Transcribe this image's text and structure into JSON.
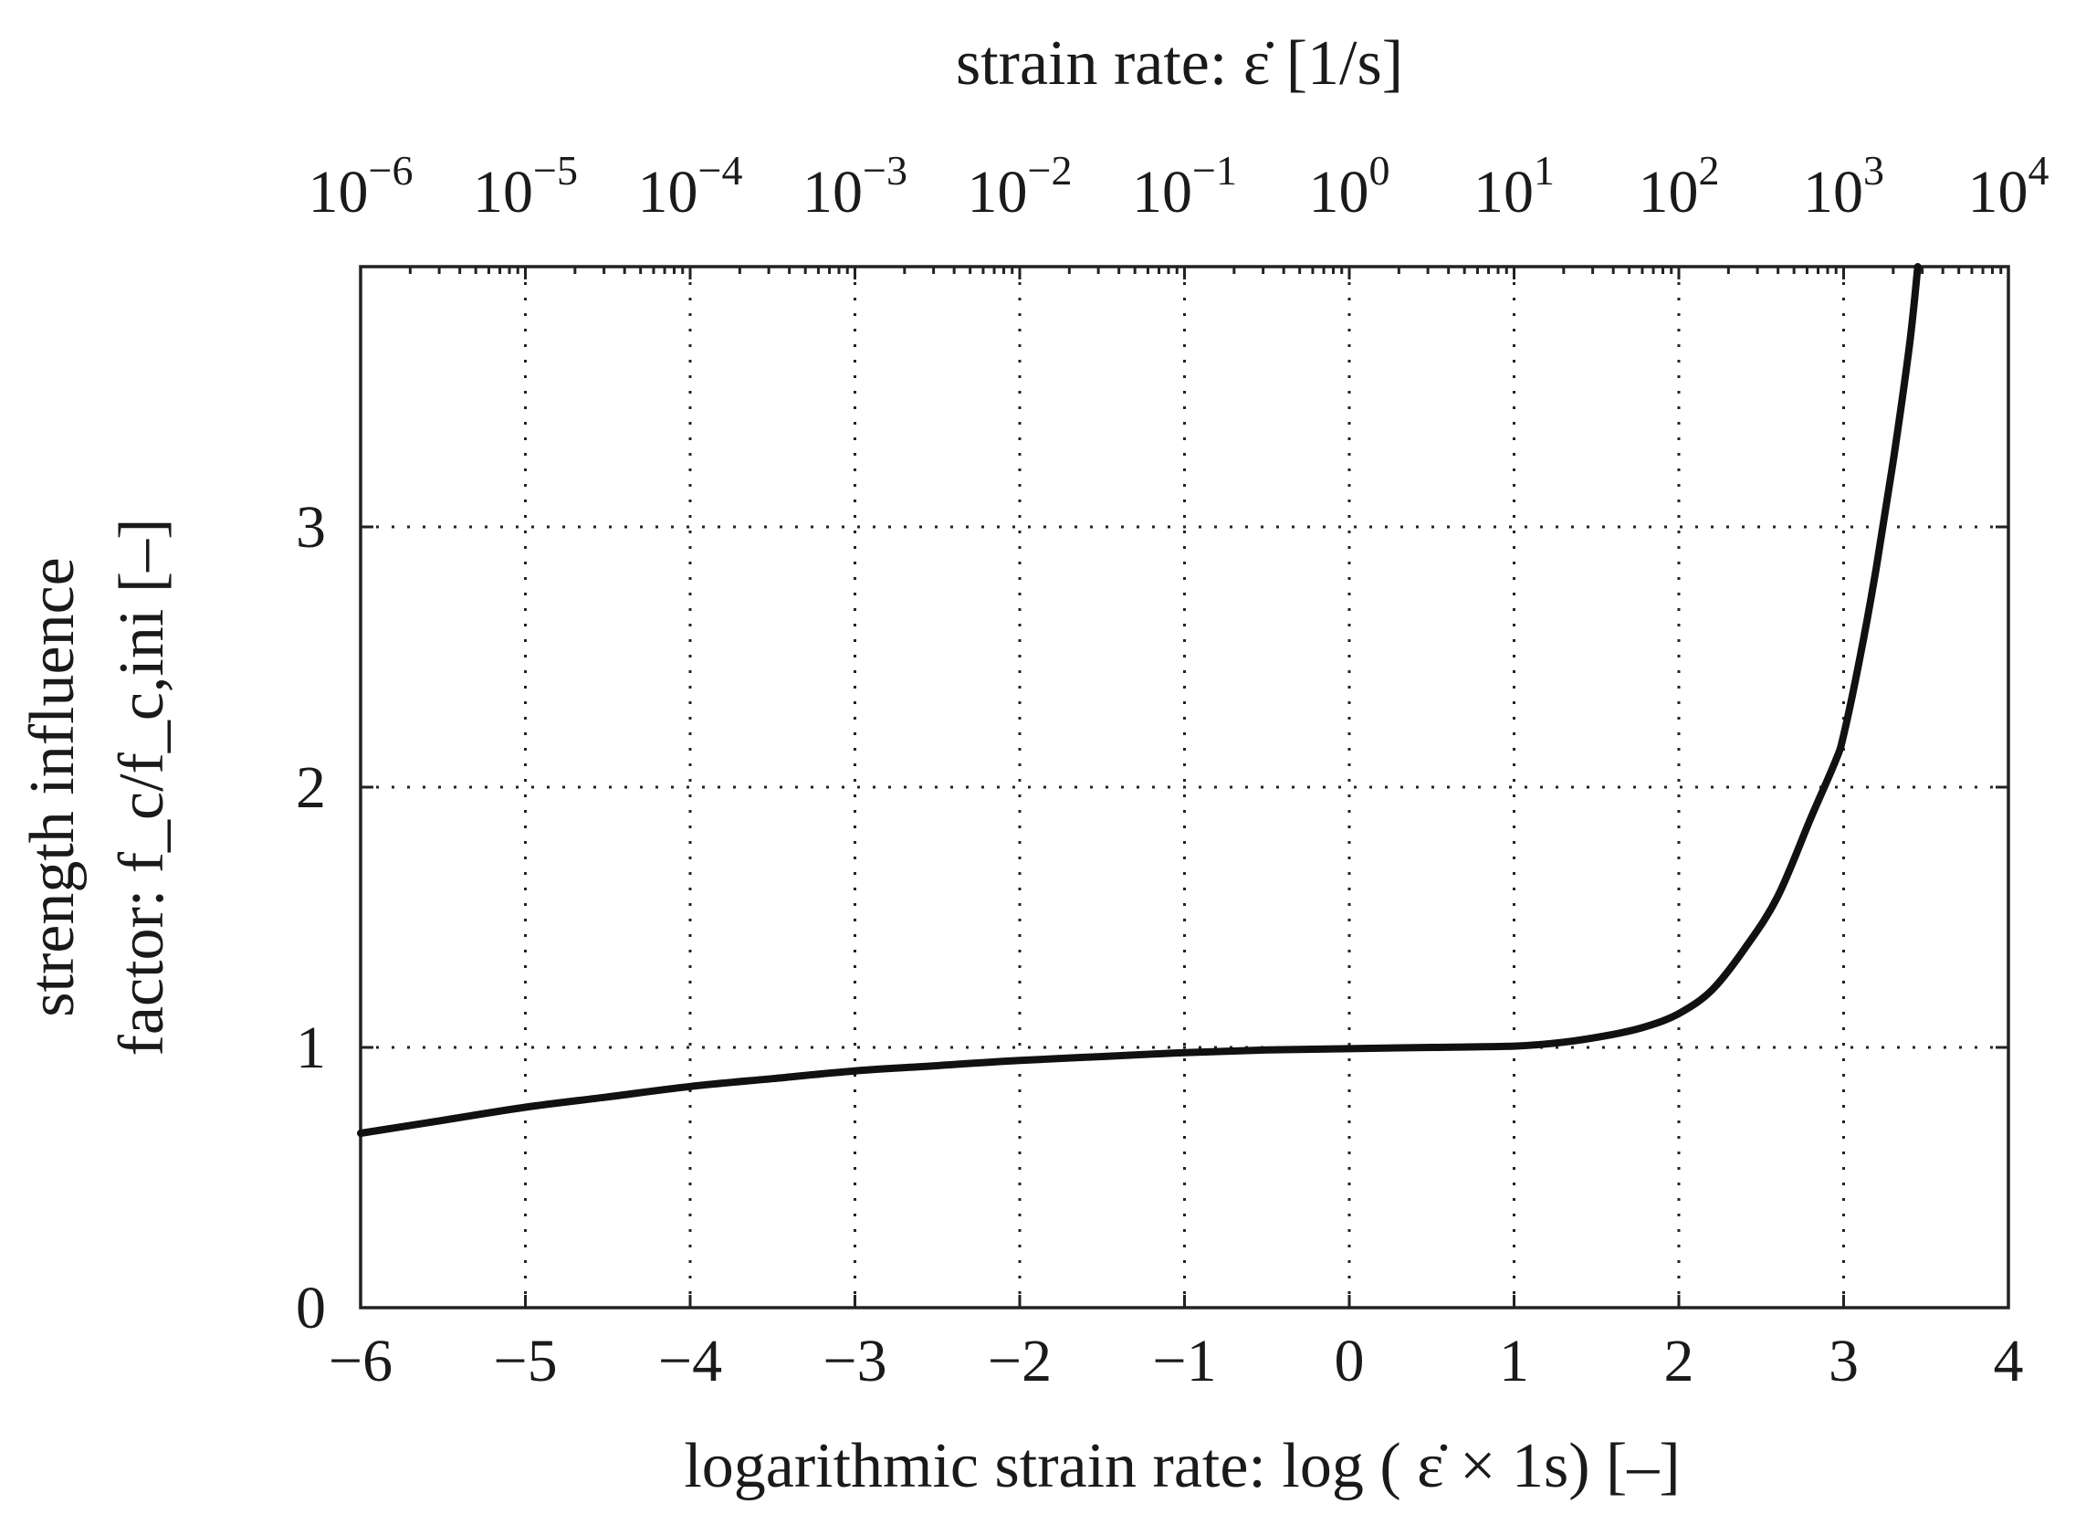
{
  "chart_data": {
    "type": "line",
    "title": "",
    "xlabel": "logarithmic strain rate: log ( ε̇ × 1s) [–]",
    "ylabel_line1": "strength influence",
    "ylabel_line2": "factor: f_c/f_c,ini [–]",
    "x2label": "strain rate: ε̇ [1/s]",
    "xlim": [
      -6,
      4
    ],
    "ylim": [
      0,
      4
    ],
    "grid": true,
    "x_ticks": [
      {
        "value": -6,
        "label": "−6"
      },
      {
        "value": -5,
        "label": "−5"
      },
      {
        "value": -4,
        "label": "−4"
      },
      {
        "value": -3,
        "label": "−3"
      },
      {
        "value": -2,
        "label": "−2"
      },
      {
        "value": -1,
        "label": "−1"
      },
      {
        "value": 0,
        "label": "0"
      },
      {
        "value": 1,
        "label": "1"
      },
      {
        "value": 2,
        "label": "2"
      },
      {
        "value": 3,
        "label": "3"
      },
      {
        "value": 4,
        "label": "4"
      }
    ],
    "y_ticks": [
      {
        "value": 0,
        "label": "0"
      },
      {
        "value": 1,
        "label": "1"
      },
      {
        "value": 2,
        "label": "2"
      },
      {
        "value": 3,
        "label": "3"
      }
    ],
    "top_ticks": [
      {
        "value": -6,
        "base": "10",
        "exp": "−6"
      },
      {
        "value": -5,
        "base": "10",
        "exp": "−5"
      },
      {
        "value": -4,
        "base": "10",
        "exp": "−4"
      },
      {
        "value": -3,
        "base": "10",
        "exp": "−3"
      },
      {
        "value": -2,
        "base": "10",
        "exp": "−2"
      },
      {
        "value": -1,
        "base": "10",
        "exp": "−1"
      },
      {
        "value": 0,
        "base": "10",
        "exp": "0"
      },
      {
        "value": 1,
        "base": "10",
        "exp": "1"
      },
      {
        "value": 2,
        "base": "10",
        "exp": "2"
      },
      {
        "value": 3,
        "base": "10",
        "exp": "3"
      },
      {
        "value": 4,
        "base": "10",
        "exp": "4"
      }
    ],
    "series": [
      {
        "name": "strength influence factor",
        "color": "#111111",
        "x": [
          -6,
          -5.5,
          -5,
          -4.5,
          -4,
          -3.5,
          -3,
          -2.5,
          -2,
          -1.5,
          -1,
          -0.5,
          0,
          0.5,
          1,
          1.3,
          1.6,
          1.8,
          2.0,
          2.2,
          2.4,
          2.6,
          2.8,
          2.95,
          3.0,
          3.1,
          3.2,
          3.3,
          3.4,
          3.45
        ],
        "y": [
          0.67,
          0.72,
          0.77,
          0.81,
          0.85,
          0.88,
          0.91,
          0.93,
          0.95,
          0.965,
          0.98,
          0.99,
          0.995,
          1.0,
          1.005,
          1.02,
          1.05,
          1.08,
          1.13,
          1.22,
          1.38,
          1.58,
          1.88,
          2.1,
          2.2,
          2.5,
          2.85,
          3.25,
          3.7,
          4.0
        ]
      }
    ]
  }
}
